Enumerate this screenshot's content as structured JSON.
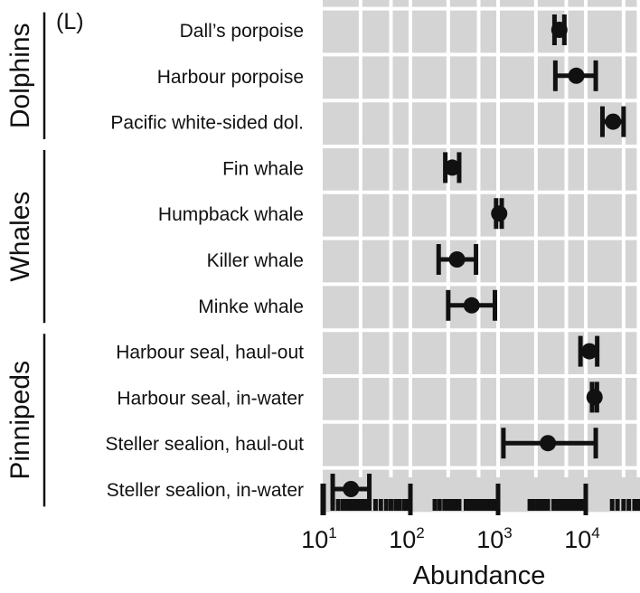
{
  "panel_label": "(L)",
  "chart_data": {
    "type": "scatter",
    "xlabel": "Abundance",
    "xscale": "log",
    "xlim": [
      10,
      40000
    ],
    "xticks": [
      {
        "value": 10,
        "base": "10",
        "exp": "1"
      },
      {
        "value": 100,
        "base": "10",
        "exp": "2"
      },
      {
        "value": 1000,
        "base": "10",
        "exp": "3"
      },
      {
        "value": 10000,
        "base": "10",
        "exp": "4"
      }
    ],
    "grid": true,
    "groups": [
      {
        "name": "Dolphins",
        "from": 0,
        "to": 2
      },
      {
        "name": "Whales",
        "from": 3,
        "to": 6
      },
      {
        "name": "Pinnipeds",
        "from": 7,
        "to": 10
      }
    ],
    "points": [
      {
        "label": "Dall’s porpoise",
        "estimate": 5000,
        "lower": 4400,
        "upper": 5700
      },
      {
        "label": "Harbour porpoise",
        "estimate": 7800,
        "lower": 4500,
        "upper": 13000
      },
      {
        "label": "Pacific white-sided dol.",
        "estimate": 20500,
        "lower": 15500,
        "upper": 27000
      },
      {
        "label": "Fin whale",
        "estimate": 300,
        "lower": 250,
        "upper": 360
      },
      {
        "label": "Humpback whale",
        "estimate": 1030,
        "lower": 950,
        "upper": 1100
      },
      {
        "label": "Killer whale",
        "estimate": 340,
        "lower": 210,
        "upper": 560
      },
      {
        "label": "Minke whale",
        "estimate": 500,
        "lower": 270,
        "upper": 920
      },
      {
        "label": "Harbour seal, haul-out",
        "estimate": 11000,
        "lower": 8700,
        "upper": 13500
      },
      {
        "label": "Harbour seal, in-water",
        "estimate": 12600,
        "lower": 11800,
        "upper": 13400
      },
      {
        "label": "Steller sealion, haul-out",
        "estimate": 3700,
        "lower": 1150,
        "upper": 13000
      },
      {
        "label": "Steller sealion, in-water",
        "estimate": 21,
        "lower": 13,
        "upper": 34
      }
    ],
    "rug": [
      10,
      13,
      15,
      17,
      19,
      21,
      22,
      24,
      26,
      28,
      31,
      34,
      40,
      46,
      53,
      60,
      68,
      75,
      85,
      92,
      100,
      190,
      215,
      245,
      270,
      300,
      330,
      360,
      430,
      470,
      520,
      580,
      640,
      700,
      780,
      850,
      920,
      1000,
      2300,
      2550,
      2850,
      3100,
      3400,
      3700,
      4300,
      4700,
      5200,
      5700,
      6300,
      7000,
      7800,
      8600,
      9500,
      20000,
      23000,
      27000,
      31000,
      36000,
      40000
    ]
  }
}
